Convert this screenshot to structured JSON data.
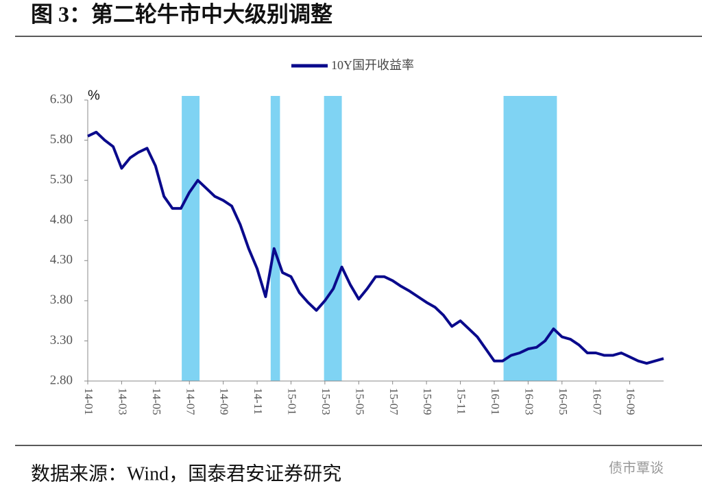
{
  "title": "图 3：第二轮牛市中大级别调整",
  "chart_data": {
    "type": "line",
    "y_unit": "%",
    "categories": [
      "14-01",
      null,
      null,
      null,
      "14-03",
      null,
      null,
      null,
      "14-05",
      null,
      null,
      null,
      "14-07",
      null,
      null,
      null,
      "14-09",
      null,
      null,
      null,
      "14-11",
      null,
      null,
      null,
      "15-01",
      null,
      null,
      null,
      "15-03",
      null,
      null,
      null,
      "15-05",
      null,
      null,
      null,
      "15-07",
      null,
      null,
      null,
      "15-09",
      null,
      null,
      null,
      "15-11",
      null,
      null,
      null,
      "16-01",
      null,
      null,
      null,
      "16-03",
      null,
      null,
      null,
      "16-05",
      null,
      null,
      null,
      "16-07",
      null,
      null,
      null,
      "16-09",
      null,
      null,
      null,
      null
    ],
    "series": [
      {
        "name": "10Y国开收益率",
        "color": "#0a0a8c",
        "values": [
          5.85,
          5.9,
          5.8,
          5.72,
          5.45,
          5.58,
          5.65,
          5.7,
          5.48,
          5.1,
          4.95,
          4.95,
          5.15,
          5.3,
          5.2,
          5.1,
          5.05,
          4.98,
          4.75,
          4.45,
          4.2,
          3.85,
          4.45,
          4.15,
          4.1,
          3.9,
          3.78,
          3.68,
          3.8,
          3.95,
          4.22,
          4.0,
          3.82,
          3.95,
          4.1,
          4.1,
          4.05,
          3.98,
          3.92,
          3.85,
          3.78,
          3.72,
          3.62,
          3.48,
          3.55,
          3.45,
          3.35,
          3.2,
          3.05,
          3.05,
          3.12,
          3.15,
          3.2,
          3.22,
          3.3,
          3.45,
          3.35,
          3.32,
          3.25,
          3.15,
          3.15,
          3.12,
          3.12,
          3.15,
          3.1,
          3.05,
          3.02,
          3.05,
          3.08
        ]
      }
    ],
    "highlight_ranges": [
      [
        11.1,
        13.2
      ],
      [
        21.6,
        22.7
      ],
      [
        27.9,
        30.0
      ],
      [
        49.1,
        55.4
      ]
    ],
    "highlight_color": "#7fd3f3",
    "ylim": [
      2.8,
      6.3
    ],
    "yticks": [
      {
        "value": 2.8,
        "label": "2.80"
      },
      {
        "value": 3.3,
        "label": "3.30"
      },
      {
        "value": 3.8,
        "label": "3.80"
      },
      {
        "value": 4.3,
        "label": "4.30"
      },
      {
        "value": 4.8,
        "label": "4.80"
      },
      {
        "value": 5.3,
        "label": "5.30"
      },
      {
        "value": 5.8,
        "label": "5.80"
      },
      {
        "value": 6.3,
        "label": "6.30"
      }
    ]
  },
  "source": "数据来源：Wind，国泰君安证券研究",
  "watermark": "债市覃谈"
}
